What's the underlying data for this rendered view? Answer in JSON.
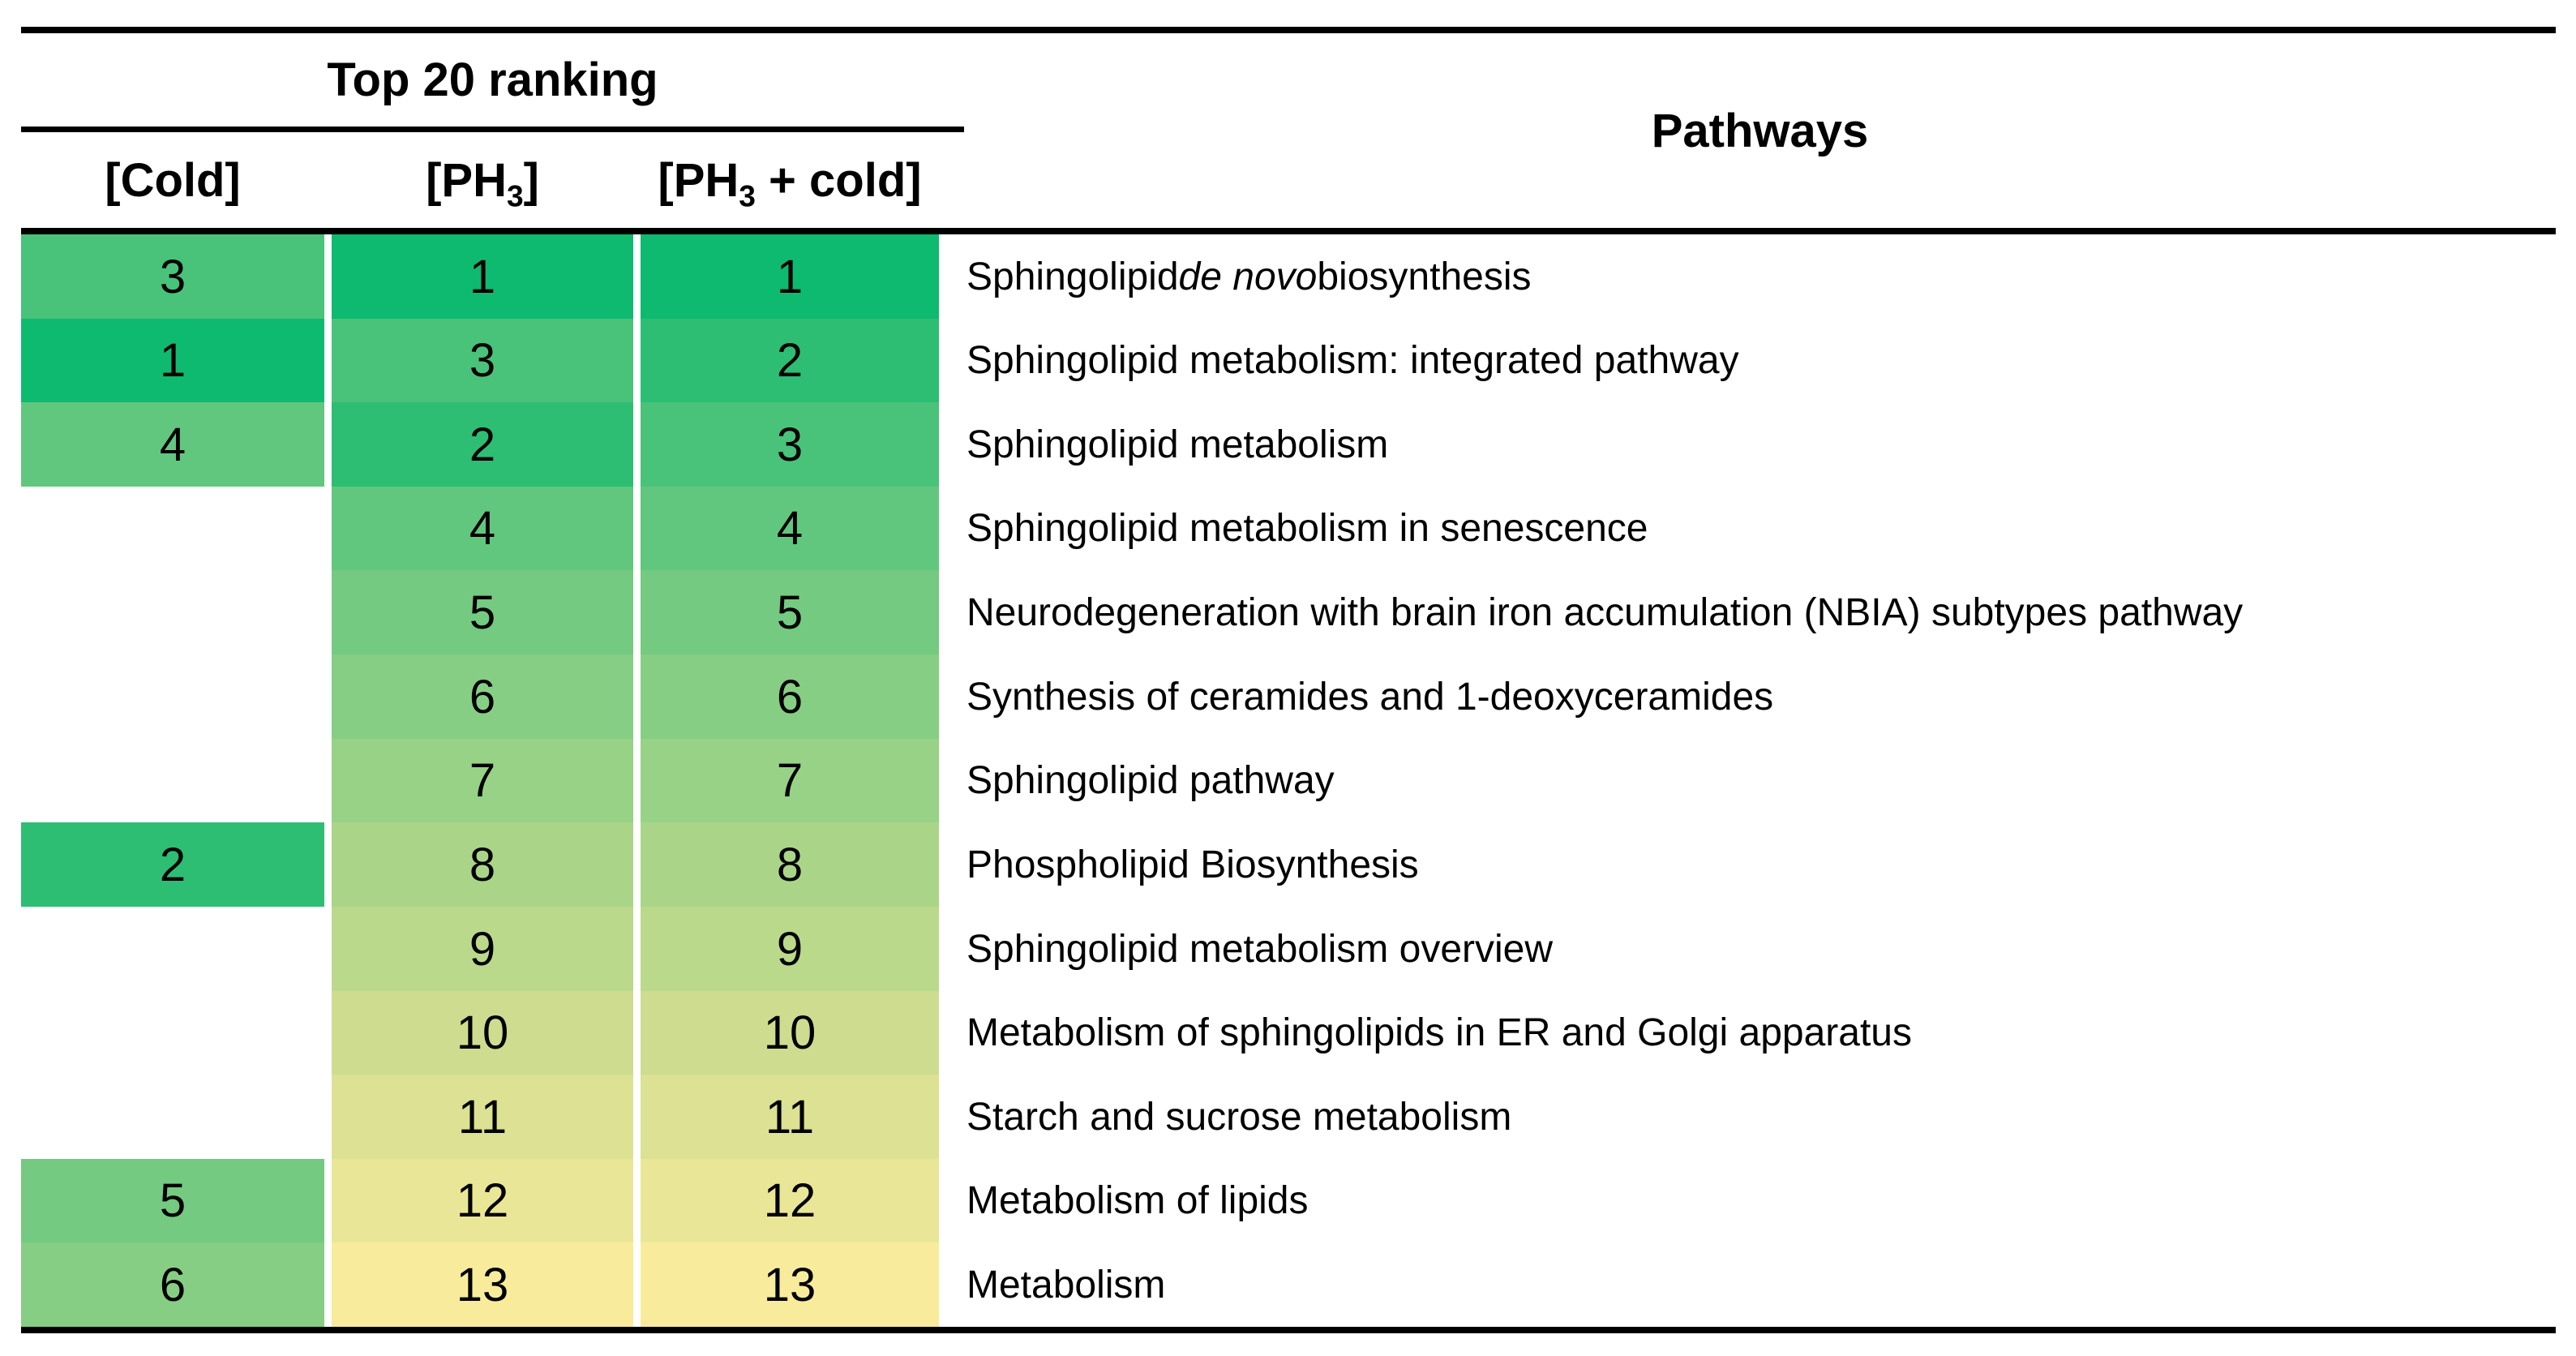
{
  "header": {
    "group_title": "Top 20 ranking",
    "pathways_title": "Pathways",
    "col_cold": {
      "pre": "[Cold]",
      "sub": "",
      "post": ""
    },
    "col_ph3": {
      "pre": "[PH",
      "sub": "3",
      "post": "]"
    },
    "col_ph3_cold": {
      "pre": "[PH",
      "sub": "3",
      "post": " + cold]"
    }
  },
  "colors": {
    "background": "#ffffff",
    "text": "#000000",
    "rule": "#000000",
    "rank_scale": {
      "1": "#0eba6f",
      "2": "#2dbe74",
      "3": "#49c27a",
      "4": "#62c77e",
      "5": "#73ca80",
      "6": "#86ce83",
      "7": "#97d286",
      "8": "#aad588",
      "9": "#bbd98b",
      "10": "#cddc8f",
      "11": "#dce193",
      "12": "#eae697",
      "13": "#f8ec9c"
    },
    "scale_note": "cell fill encodes rank value: green (1) to pale yellow (13)"
  },
  "chart_data": {
    "type": "table",
    "title": "Top 20 ranking",
    "columns": [
      "[Cold]",
      "[PH3]",
      "[PH3 + cold]",
      "Pathways"
    ],
    "rows": [
      {
        "cold": 3,
        "ph3": 1,
        "ph3_cold": 1,
        "pathway": "Sphingolipid de novo biosynthesis",
        "segments": [
          {
            "t": "Sphingolipid "
          },
          {
            "t": "de novo",
            "italic": true
          },
          {
            "t": " biosynthesis"
          }
        ]
      },
      {
        "cold": 1,
        "ph3": 3,
        "ph3_cold": 2,
        "pathway": "Sphingolipid metabolism: integrated pathway",
        "segments": [
          {
            "t": "Sphingolipid metabolism: integrated pathway"
          }
        ]
      },
      {
        "cold": 4,
        "ph3": 2,
        "ph3_cold": 3,
        "pathway": "Sphingolipid metabolism",
        "segments": [
          {
            "t": "Sphingolipid metabolism"
          }
        ]
      },
      {
        "cold": null,
        "ph3": 4,
        "ph3_cold": 4,
        "pathway": "Sphingolipid metabolism in senescence",
        "segments": [
          {
            "t": "Sphingolipid metabolism in senescence"
          }
        ]
      },
      {
        "cold": null,
        "ph3": 5,
        "ph3_cold": 5,
        "pathway": "Neurodegeneration with brain iron accumulation (NBIA) subtypes pathway",
        "segments": [
          {
            "t": "Neurodegeneration with brain iron accumulation (NBIA) subtypes pathway"
          }
        ]
      },
      {
        "cold": null,
        "ph3": 6,
        "ph3_cold": 6,
        "pathway": "Synthesis of ceramides and 1-deoxyceramides",
        "segments": [
          {
            "t": "Synthesis of ceramides and 1-deoxyceramides"
          }
        ]
      },
      {
        "cold": null,
        "ph3": 7,
        "ph3_cold": 7,
        "pathway": "Sphingolipid pathway",
        "segments": [
          {
            "t": "Sphingolipid pathway"
          }
        ]
      },
      {
        "cold": 2,
        "ph3": 8,
        "ph3_cold": 8,
        "pathway": "Phospholipid Biosynthesis",
        "segments": [
          {
            "t": "Phospholipid Biosynthesis"
          }
        ]
      },
      {
        "cold": null,
        "ph3": 9,
        "ph3_cold": 9,
        "pathway": "Sphingolipid metabolism overview",
        "segments": [
          {
            "t": "Sphingolipid metabolism overview"
          }
        ]
      },
      {
        "cold": null,
        "ph3": 10,
        "ph3_cold": 10,
        "pathway": "Metabolism of sphingolipids in ER and Golgi apparatus",
        "segments": [
          {
            "t": "Metabolism of sphingolipids in ER and Golgi apparatus"
          }
        ]
      },
      {
        "cold": null,
        "ph3": 11,
        "ph3_cold": 11,
        "pathway": "Starch and sucrose metabolism",
        "segments": [
          {
            "t": "Starch and sucrose metabolism"
          }
        ]
      },
      {
        "cold": 5,
        "ph3": 12,
        "ph3_cold": 12,
        "pathway": "Metabolism of lipids",
        "segments": [
          {
            "t": "Metabolism of lipids"
          }
        ]
      },
      {
        "cold": 6,
        "ph3": 13,
        "ph3_cold": 13,
        "pathway": "Metabolism",
        "segments": [
          {
            "t": "Metabolism"
          }
        ]
      }
    ]
  }
}
